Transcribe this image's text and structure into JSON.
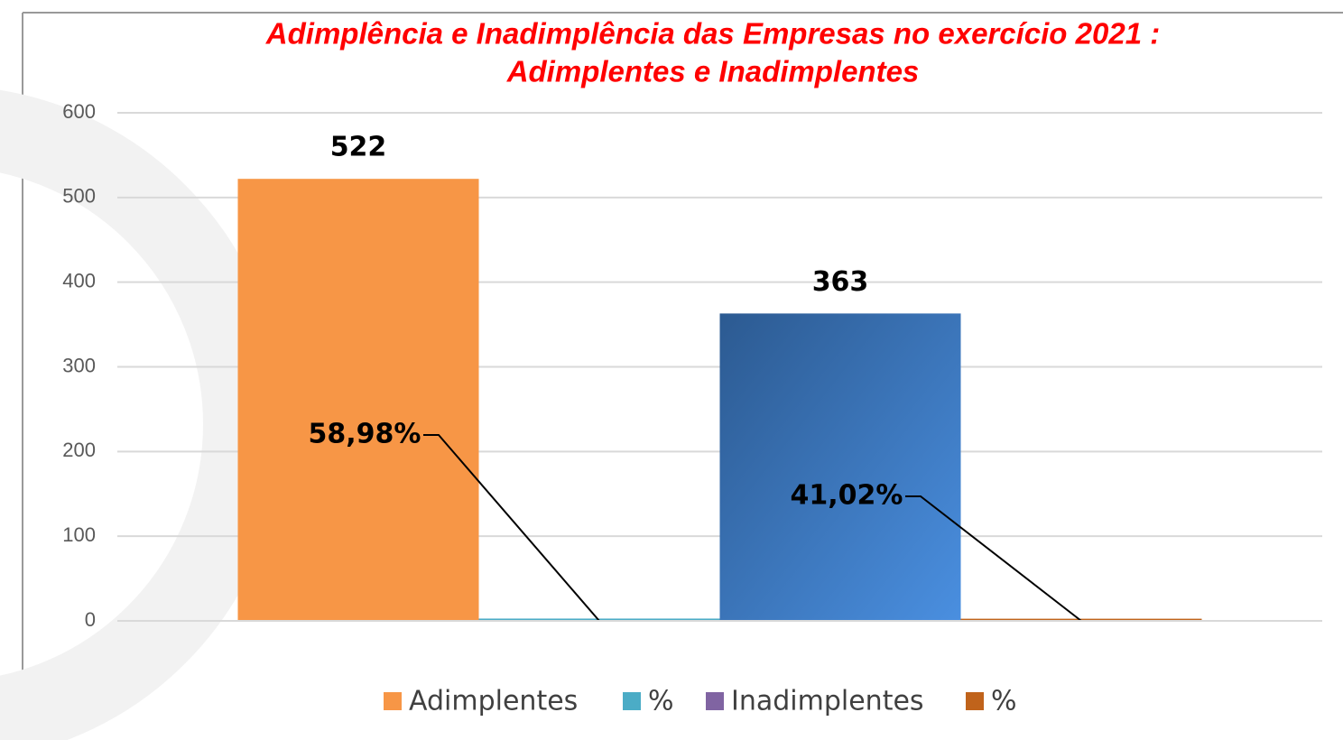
{
  "chart_data": {
    "type": "bar",
    "title": [
      "Adimplência  e Inadimplência  das Empresas no exercício 2021 :",
      "Adimplentes  e Inadimplentes"
    ],
    "categories": [
      null
    ],
    "series": [
      {
        "name": "Adimplentes",
        "color": "#f79646",
        "values": [
          522
        ]
      },
      {
        "name": "%",
        "color": "#4bacc6",
        "values": [
          0.5898
        ],
        "value_labels": [
          "58,98%"
        ]
      },
      {
        "name": "Inadimplentes",
        "color": "#8064a2",
        "bar_color": "#3a72bf",
        "values": [
          363
        ]
      },
      {
        "name": "%",
        "color": "#c0631b",
        "values": [
          0.4102
        ],
        "value_labels": [
          "41,02%"
        ]
      }
    ],
    "ylim": [
      0,
      600
    ],
    "yticks": [
      0,
      100,
      200,
      300,
      400,
      500,
      600
    ],
    "grid": true,
    "legend": "bottom"
  }
}
